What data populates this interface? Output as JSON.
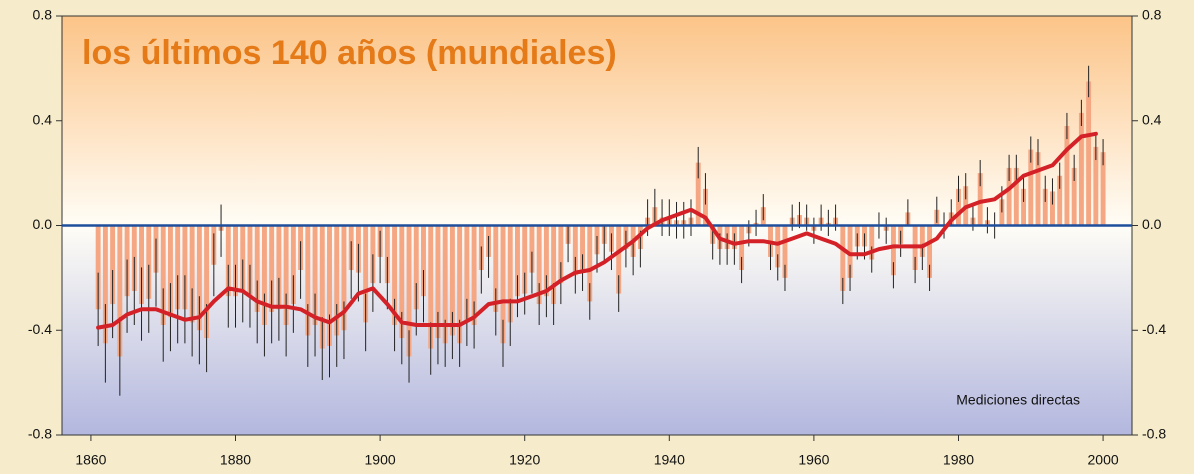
{
  "chart_data": {
    "type": "bar",
    "title": "los últimos 140 años (mundiales)",
    "annotation": "Mediciones directas",
    "x": [
      1861,
      1862,
      1863,
      1864,
      1865,
      1866,
      1867,
      1868,
      1869,
      1870,
      1871,
      1872,
      1873,
      1874,
      1875,
      1876,
      1877,
      1878,
      1879,
      1880,
      1881,
      1882,
      1883,
      1884,
      1885,
      1886,
      1887,
      1888,
      1889,
      1890,
      1891,
      1892,
      1893,
      1894,
      1895,
      1896,
      1897,
      1898,
      1899,
      1900,
      1901,
      1902,
      1903,
      1904,
      1905,
      1906,
      1907,
      1908,
      1909,
      1910,
      1911,
      1912,
      1913,
      1914,
      1915,
      1916,
      1917,
      1918,
      1919,
      1920,
      1921,
      1922,
      1923,
      1924,
      1925,
      1926,
      1927,
      1928,
      1929,
      1930,
      1931,
      1932,
      1933,
      1934,
      1935,
      1936,
      1937,
      1938,
      1939,
      1940,
      1941,
      1942,
      1943,
      1944,
      1945,
      1946,
      1947,
      1948,
      1949,
      1950,
      1951,
      1952,
      1953,
      1954,
      1955,
      1956,
      1957,
      1958,
      1959,
      1960,
      1961,
      1962,
      1963,
      1964,
      1965,
      1966,
      1967,
      1968,
      1969,
      1970,
      1971,
      1972,
      1973,
      1974,
      1975,
      1976,
      1977,
      1978,
      1979,
      1980,
      1981,
      1982,
      1983,
      1984,
      1985,
      1986,
      1987,
      1988,
      1989,
      1990,
      1991,
      1992,
      1993,
      1994,
      1995,
      1996,
      1997,
      1998,
      1999,
      2000
    ],
    "values": [
      -0.32,
      -0.45,
      -0.3,
      -0.5,
      -0.27,
      -0.25,
      -0.3,
      -0.28,
      -0.18,
      -0.38,
      -0.35,
      -0.32,
      -0.32,
      -0.37,
      -0.4,
      -0.43,
      -0.15,
      -0.02,
      -0.27,
      -0.27,
      -0.25,
      -0.27,
      -0.33,
      -0.38,
      -0.33,
      -0.32,
      -0.38,
      -0.3,
      -0.17,
      -0.42,
      -0.38,
      -0.47,
      -0.46,
      -0.42,
      -0.4,
      -0.17,
      -0.18,
      -0.37,
      -0.22,
      -0.12,
      -0.22,
      -0.38,
      -0.43,
      -0.5,
      -0.32,
      -0.27,
      -0.47,
      -0.43,
      -0.45,
      -0.42,
      -0.45,
      -0.37,
      -0.38,
      -0.17,
      -0.12,
      -0.33,
      -0.45,
      -0.37,
      -0.27,
      -0.26,
      -0.18,
      -0.3,
      -0.27,
      -0.3,
      -0.22,
      -0.07,
      -0.19,
      -0.18,
      -0.29,
      -0.11,
      -0.07,
      -0.1,
      -0.26,
      -0.09,
      -0.12,
      -0.09,
      0.03,
      0.07,
      0.03,
      0.03,
      0.02,
      0.02,
      0.03,
      0.24,
      0.14,
      -0.07,
      -0.09,
      -0.09,
      -0.09,
      -0.17,
      -0.03,
      0.01,
      0.07,
      -0.12,
      -0.16,
      -0.2,
      0.03,
      0.04,
      0.03,
      -0.02,
      0.03,
      0.01,
      0.03,
      -0.25,
      -0.2,
      -0.08,
      -0.08,
      -0.13,
      0.0,
      -0.02,
      -0.19,
      -0.07,
      0.05,
      -0.17,
      -0.12,
      -0.2,
      0.06,
      0.0,
      0.05,
      0.14,
      0.15,
      0.03,
      0.2,
      0.02,
      0.0,
      0.1,
      0.22,
      0.22,
      0.14,
      0.29,
      0.28,
      0.14,
      0.13,
      0.19,
      0.38,
      0.22,
      0.43,
      0.55,
      0.3,
      0.28
    ],
    "errors": [
      0.14,
      0.15,
      0.13,
      0.15,
      0.14,
      0.13,
      0.14,
      0.13,
      0.13,
      0.14,
      0.13,
      0.13,
      0.13,
      0.13,
      0.13,
      0.13,
      0.12,
      0.1,
      0.12,
      0.12,
      0.12,
      0.12,
      0.12,
      0.12,
      0.12,
      0.12,
      0.12,
      0.11,
      0.11,
      0.12,
      0.12,
      0.12,
      0.12,
      0.12,
      0.11,
      0.11,
      0.11,
      0.11,
      0.11,
      0.1,
      0.1,
      0.1,
      0.1,
      0.1,
      0.1,
      0.1,
      0.1,
      0.1,
      0.09,
      0.09,
      0.09,
      0.09,
      0.09,
      0.09,
      0.08,
      0.09,
      0.09,
      0.09,
      0.08,
      0.08,
      0.08,
      0.08,
      0.08,
      0.08,
      0.08,
      0.07,
      0.07,
      0.07,
      0.07,
      0.07,
      0.07,
      0.07,
      0.07,
      0.07,
      0.07,
      0.07,
      0.07,
      0.07,
      0.07,
      0.07,
      0.07,
      0.07,
      0.07,
      0.06,
      0.06,
      0.06,
      0.06,
      0.06,
      0.06,
      0.05,
      0.05,
      0.05,
      0.05,
      0.05,
      0.05,
      0.05,
      0.05,
      0.05,
      0.05,
      0.05,
      0.05,
      0.05,
      0.05,
      0.05,
      0.05,
      0.05,
      0.05,
      0.05,
      0.05,
      0.05,
      0.05,
      0.05,
      0.05,
      0.05,
      0.05,
      0.05,
      0.05,
      0.05,
      0.05,
      0.05,
      0.05,
      0.05,
      0.05,
      0.05,
      0.05,
      0.05,
      0.05,
      0.05,
      0.05,
      0.05,
      0.05,
      0.05,
      0.05,
      0.05,
      0.05,
      0.05,
      0.05,
      0.06,
      0.05,
      0.05
    ],
    "color": "#f5a682",
    "error_color": "#222222",
    "smooth": {
      "color": "#d42127",
      "x": [
        1861,
        1863,
        1865,
        1867,
        1869,
        1871,
        1873,
        1875,
        1877,
        1879,
        1881,
        1883,
        1885,
        1887,
        1889,
        1891,
        1893,
        1895,
        1897,
        1899,
        1901,
        1903,
        1905,
        1907,
        1909,
        1911,
        1913,
        1915,
        1917,
        1919,
        1921,
        1923,
        1925,
        1927,
        1929,
        1931,
        1933,
        1935,
        1937,
        1939,
        1941,
        1943,
        1945,
        1947,
        1949,
        1951,
        1953,
        1955,
        1957,
        1959,
        1961,
        1963,
        1965,
        1967,
        1969,
        1971,
        1973,
        1975,
        1977,
        1979,
        1981,
        1983,
        1985,
        1987,
        1989,
        1991,
        1993,
        1995,
        1997,
        1999
      ],
      "values": [
        -0.39,
        -0.38,
        -0.34,
        -0.32,
        -0.32,
        -0.34,
        -0.36,
        -0.35,
        -0.29,
        -0.24,
        -0.25,
        -0.29,
        -0.31,
        -0.31,
        -0.32,
        -0.35,
        -0.37,
        -0.33,
        -0.26,
        -0.24,
        -0.3,
        -0.37,
        -0.38,
        -0.38,
        -0.38,
        -0.38,
        -0.35,
        -0.3,
        -0.29,
        -0.29,
        -0.27,
        -0.25,
        -0.21,
        -0.18,
        -0.17,
        -0.14,
        -0.1,
        -0.06,
        -0.01,
        0.02,
        0.04,
        0.06,
        0.03,
        -0.05,
        -0.07,
        -0.06,
        -0.06,
        -0.07,
        -0.05,
        -0.03,
        -0.05,
        -0.07,
        -0.11,
        -0.11,
        -0.09,
        -0.08,
        -0.08,
        -0.08,
        -0.05,
        0.02,
        0.07,
        0.09,
        0.1,
        0.14,
        0.19,
        0.21,
        0.23,
        0.29,
        0.34,
        0.35
      ]
    },
    "zero_line_color": "#1f4f9c",
    "xlim": [
      1856,
      2004
    ],
    "xticks": [
      1860,
      1880,
      1900,
      1920,
      1940,
      1960,
      1980,
      2000
    ],
    "ylim": [
      -0.8,
      0.8
    ],
    "yticks": [
      -0.8,
      -0.4,
      {
        "value": 0,
        "label": "0.0"
      },
      0.4,
      0.8
    ]
  }
}
